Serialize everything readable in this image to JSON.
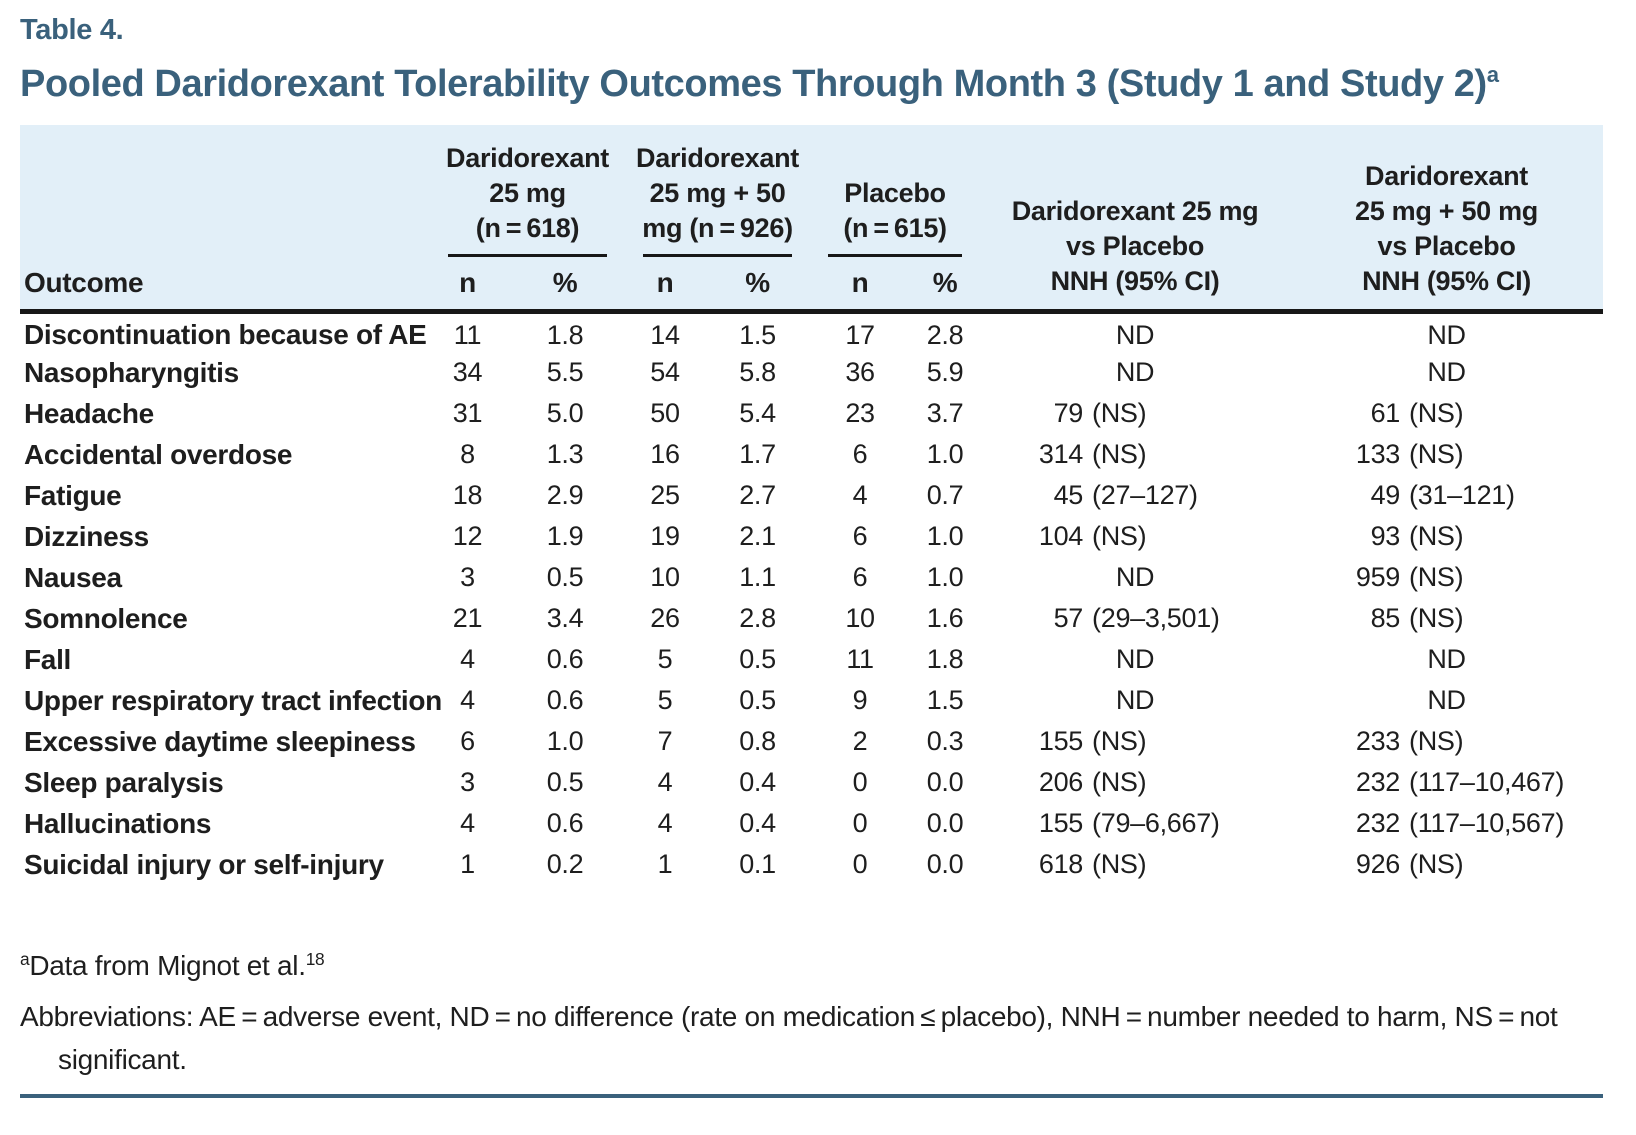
{
  "page": {
    "table_label": "Table 4.",
    "title": "Pooled Daridorexant Tolerability Outcomes Through Month 3 (Study 1 and Study 2)",
    "title_footnote_marker": "a"
  },
  "colors": {
    "accent_blue": "#3A617C",
    "header_bg": "#E2EFF8",
    "text": "#1E1E1E"
  },
  "table": {
    "outcome_header": "Outcome",
    "subheaders": {
      "n": "n",
      "pct": "%"
    },
    "groups": [
      {
        "name": "daridorexant-25mg",
        "lines": [
          "Daridorexant",
          "25 mg",
          "(n = 618)"
        ]
      },
      {
        "name": "daridorexant-25mg-50mg",
        "lines": [
          "Daridorexant",
          "25 mg + 50",
          "mg (n = 926)"
        ]
      },
      {
        "name": "placebo",
        "lines": [
          "Placebo",
          "(n = 615)"
        ]
      }
    ],
    "nnh_headers": [
      {
        "name": "daridorexant-25mg-vs-placebo",
        "lines": [
          "Daridorexant 25 mg",
          "vs Placebo",
          "NNH (95% CI)"
        ]
      },
      {
        "name": "daridorexant-25mg-50mg-vs-placebo",
        "lines": [
          "Daridorexant",
          "25 mg + 50 mg",
          "vs Placebo",
          "NNH (95% CI)"
        ]
      }
    ],
    "rows": [
      [
        "Discontinuation because of AE",
        "11",
        "1.8",
        "14",
        "1.5",
        "17",
        "2.8",
        "ND",
        "ND"
      ],
      [
        "Nasopharyngitis",
        "34",
        "5.5",
        "54",
        "5.8",
        "36",
        "5.9",
        "ND",
        "ND"
      ],
      [
        "Headache",
        "31",
        "5.0",
        "50",
        "5.4",
        "23",
        "3.7",
        "79 (NS)",
        "61 (NS)"
      ],
      [
        "Accidental overdose",
        "8",
        "1.3",
        "16",
        "1.7",
        "6",
        "1.0",
        "314 (NS)",
        "133 (NS)"
      ],
      [
        "Fatigue",
        "18",
        "2.9",
        "25",
        "2.7",
        "4",
        "0.7",
        "45 (27–127)",
        "49 (31–121)"
      ],
      [
        "Dizziness",
        "12",
        "1.9",
        "19",
        "2.1",
        "6",
        "1.0",
        "104 (NS)",
        "93 (NS)"
      ],
      [
        "Nausea",
        "3",
        "0.5",
        "10",
        "1.1",
        "6",
        "1.0",
        "ND",
        "959 (NS)"
      ],
      [
        "Somnolence",
        "21",
        "3.4",
        "26",
        "2.8",
        "10",
        "1.6",
        "57 (29–3,501)",
        "85 (NS)"
      ],
      [
        "Fall",
        "4",
        "0.6",
        "5",
        "0.5",
        "11",
        "1.8",
        "ND",
        "ND"
      ],
      [
        "Upper respiratory tract infection",
        "4",
        "0.6",
        "5",
        "0.5",
        "9",
        "1.5",
        "ND",
        "ND"
      ],
      [
        "Excessive daytime sleepiness",
        "6",
        "1.0",
        "7",
        "0.8",
        "2",
        "0.3",
        "155 (NS)",
        "233 (NS)"
      ],
      [
        "Sleep paralysis",
        "3",
        "0.5",
        "4",
        "0.4",
        "0",
        "0.0",
        "206 (NS)",
        "232 (117–10,467)"
      ],
      [
        "Hallucinations",
        "4",
        "0.6",
        "4",
        "0.4",
        "0",
        "0.0",
        "155 (79–6,667)",
        "232 (117–10,567)"
      ],
      [
        "Suicidal injury or self-injury",
        "1",
        "0.2",
        "1",
        "0.1",
        "0",
        "0.0",
        "618 (NS)",
        "926 (NS)"
      ]
    ]
  },
  "footnotes": {
    "source_marker": "a",
    "source_text": "Data from Mignot et al.",
    "source_ref": "18",
    "abbreviations": "Abbreviations: AE = adverse event, ND = no difference (rate on medication ≤ placebo), NNH = number needed to harm, NS = not significant."
  }
}
